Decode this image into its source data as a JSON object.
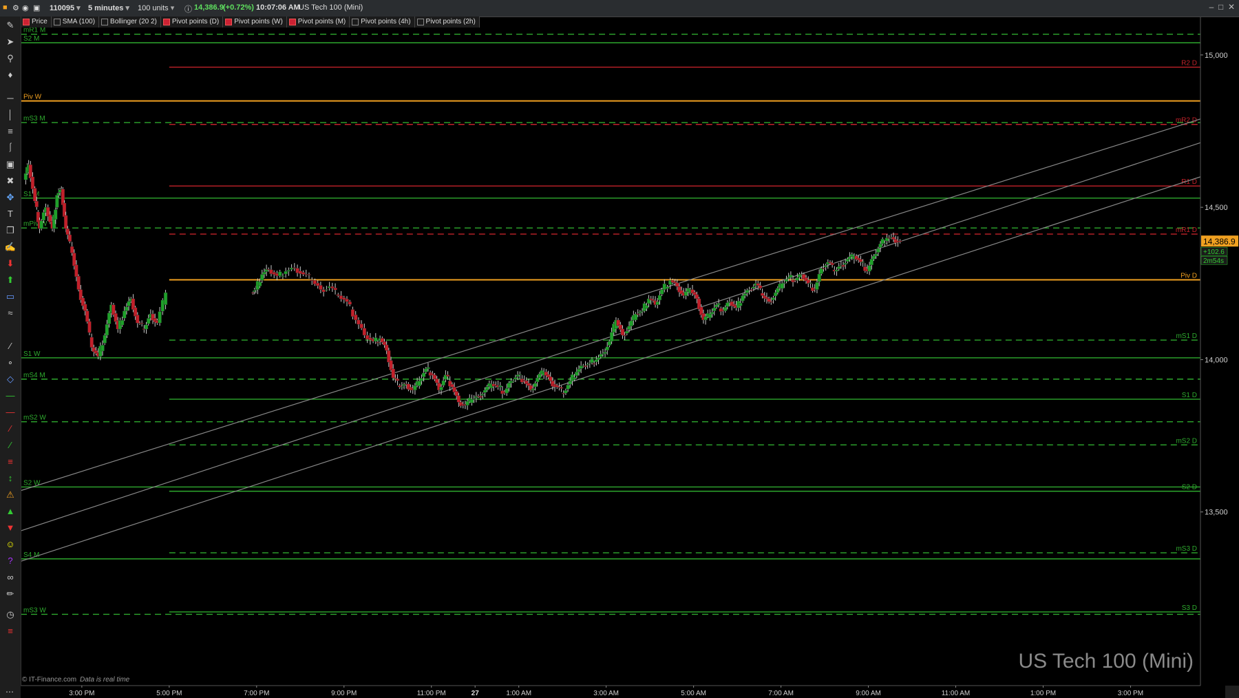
{
  "toolbar": {
    "account": "110095",
    "interval": "5 minutes",
    "units": "100 units",
    "price": "14,386.9",
    "change": "(+0.72%)",
    "time": "10:07:06 AM",
    "instrument": "US Tech 100 (Mini)"
  },
  "indicators": [
    {
      "label": "Price",
      "active": true
    },
    {
      "label": "SMA (100)",
      "active": false
    },
    {
      "label": "Bollinger (20 2)",
      "active": false
    },
    {
      "label": "Pivot points (D)",
      "active": true
    },
    {
      "label": "Pivot points (W)",
      "active": true
    },
    {
      "label": "Pivot points (M)",
      "active": true
    },
    {
      "label": "Pivot points (4h)",
      "active": false
    },
    {
      "label": "Pivot points (2h)",
      "active": false
    }
  ],
  "watermark": "US Tech 100 (Mini)",
  "copyright": "© IT-Finance.com",
  "realtime_note": "Data is real time",
  "price_box": {
    "price": "14,386.9",
    "change": "+102.6",
    "countdown": "2m54s"
  },
  "colors": {
    "up": "#1fa02a",
    "down": "#c2202a",
    "pivot": "#f0a020",
    "support": "#2eaa2e",
    "resistance": "#c2222a",
    "channel": "#888888",
    "background": "#000000"
  },
  "chart_data": {
    "type": "candlestick",
    "instrument": "US Tech 100 (Mini)",
    "interval": "5 minutes",
    "y_ticks": [
      "15,000",
      "14,500",
      "14,000",
      "13,500"
    ],
    "y_tick_values": [
      15000,
      14500,
      14000,
      13500
    ],
    "ylim": [
      12930,
      15090
    ],
    "x_ticks": [
      "3:00 PM",
      "5:00 PM",
      "7:00 PM",
      "9:00 PM",
      "11:00 PM",
      "27",
      "1:00 AM",
      "3:00 AM",
      "5:00 AM",
      "7:00 AM",
      "9:00 AM",
      "11:00 AM",
      "1:00 PM",
      "3:00 PM"
    ],
    "x_tick_hours": [
      15,
      17,
      19,
      21,
      23,
      24,
      25,
      27,
      29,
      31,
      33,
      35,
      37,
      39
    ],
    "xlim_hours": [
      13.6,
      40.6
    ],
    "last_price": 14386.9,
    "levels": [
      {
        "label": "mR1 M",
        "value": 15068,
        "color": "#2eaa2e",
        "style": "dashed",
        "side": "left",
        "from": "start"
      },
      {
        "label": "S2 M",
        "value": 15040,
        "color": "#2eaa2e",
        "style": "solid",
        "side": "left",
        "from": "start"
      },
      {
        "label": "R2 D",
        "value": 14960,
        "color": "#c2222a",
        "style": "solid",
        "side": "right",
        "from": "day"
      },
      {
        "label": "Piv W",
        "value": 14849,
        "color": "#f0a020",
        "style": "solid",
        "side": "left",
        "from": "start"
      },
      {
        "label": "mS3 M",
        "value": 14778,
        "color": "#2eaa2e",
        "style": "dashed",
        "side": "left",
        "from": "start"
      },
      {
        "label": "mR2 D",
        "value": 14772,
        "color": "#c2222a",
        "style": "dashed",
        "side": "right",
        "from": "day"
      },
      {
        "label": "R1 D",
        "value": 14570,
        "color": "#c2222a",
        "style": "solid",
        "side": "right",
        "from": "day"
      },
      {
        "label": "S1 M",
        "value": 14530,
        "color": "#2eaa2e",
        "style": "solid",
        "side": "left",
        "from": "start"
      },
      {
        "label": "mPiv W",
        "value": 14432,
        "color": "#2eaa2e",
        "style": "dashed",
        "side": "left",
        "from": "start"
      },
      {
        "label": "mR1 D",
        "value": 14412,
        "color": "#c2222a",
        "style": "dashed",
        "side": "right",
        "from": "day"
      },
      {
        "label": "Piv D",
        "value": 14262,
        "color": "#f0a020",
        "style": "solid",
        "side": "right",
        "from": "day"
      },
      {
        "label": "mS1 D",
        "value": 14064,
        "color": "#2eaa2e",
        "style": "dashed",
        "side": "right",
        "from": "day"
      },
      {
        "label": "S1 W",
        "value": 14006,
        "color": "#2eaa2e",
        "style": "solid",
        "side": "left",
        "from": "start"
      },
      {
        "label": "mS4 M",
        "value": 13936,
        "color": "#2eaa2e",
        "style": "dashed",
        "side": "left",
        "from": "start"
      },
      {
        "label": "S1 D",
        "value": 13870,
        "color": "#2eaa2e",
        "style": "solid",
        "side": "right",
        "from": "day"
      },
      {
        "label": "mS2 W",
        "value": 13796,
        "color": "#2eaa2e",
        "style": "dashed",
        "side": "left",
        "from": "start"
      },
      {
        "label": "mS2 D",
        "value": 13720,
        "color": "#2eaa2e",
        "style": "dashed",
        "side": "right",
        "from": "day"
      },
      {
        "label": "S2 W",
        "value": 13582,
        "color": "#2eaa2e",
        "style": "solid",
        "side": "left",
        "from": "start"
      },
      {
        "label": "S2 D",
        "value": 13568,
        "color": "#2eaa2e",
        "style": "solid",
        "side": "right",
        "from": "day"
      },
      {
        "label": "mS3 D",
        "value": 13366,
        "color": "#2eaa2e",
        "style": "dashed",
        "side": "right",
        "from": "day"
      },
      {
        "label": "S4 M",
        "value": 13346,
        "color": "#2eaa2e",
        "style": "solid",
        "side": "left",
        "from": "start"
      },
      {
        "label": "mS3 W",
        "value": 13164,
        "color": "#2eaa2e",
        "style": "dashed",
        "side": "left",
        "from": "start"
      },
      {
        "label": "S3 D",
        "value": 13172,
        "color": "#2eaa2e",
        "style": "solid",
        "side": "right",
        "from": "day"
      }
    ],
    "day_start_hour": 17.0,
    "channel_lines": [
      {
        "x1": 13.6,
        "y1": 13570,
        "x2": 40.6,
        "y2": 14790
      },
      {
        "x1": 13.6,
        "y1": 13438,
        "x2": 40.6,
        "y2": 14712
      },
      {
        "x1": 13.6,
        "y1": 13338,
        "x2": 40.6,
        "y2": 14600
      }
    ],
    "price_path": [
      [
        13.7,
        14590
      ],
      [
        13.8,
        14640
      ],
      [
        13.95,
        14520
      ],
      [
        14.05,
        14430
      ],
      [
        14.2,
        14500
      ],
      [
        14.35,
        14430
      ],
      [
        14.45,
        14540
      ],
      [
        14.55,
        14560
      ],
      [
        14.65,
        14430
      ],
      [
        14.8,
        14350
      ],
      [
        14.95,
        14230
      ],
      [
        15.1,
        14160
      ],
      [
        15.25,
        14040
      ],
      [
        15.4,
        14010
      ],
      [
        15.55,
        14080
      ],
      [
        15.7,
        14180
      ],
      [
        15.85,
        14100
      ],
      [
        16.0,
        14160
      ],
      [
        16.15,
        14200
      ],
      [
        16.3,
        14120
      ],
      [
        16.45,
        14100
      ],
      [
        16.6,
        14150
      ],
      [
        16.75,
        14120
      ],
      [
        16.95,
        14220
      ],
      [
        19.0,
        14230
      ],
      [
        19.15,
        14280
      ],
      [
        19.3,
        14295
      ],
      [
        19.5,
        14275
      ],
      [
        19.7,
        14290
      ],
      [
        19.9,
        14300
      ],
      [
        20.1,
        14280
      ],
      [
        20.3,
        14260
      ],
      [
        20.5,
        14230
      ],
      [
        20.7,
        14240
      ],
      [
        20.9,
        14210
      ],
      [
        21.1,
        14190
      ],
      [
        21.3,
        14130
      ],
      [
        21.5,
        14080
      ],
      [
        21.7,
        14060
      ],
      [
        21.85,
        14070
      ],
      [
        22.0,
        14030
      ],
      [
        22.15,
        13940
      ],
      [
        22.3,
        13910
      ],
      [
        22.45,
        13920
      ],
      [
        22.6,
        13900
      ],
      [
        22.75,
        13930
      ],
      [
        22.9,
        13970
      ],
      [
        23.05,
        13950
      ],
      [
        23.2,
        13900
      ],
      [
        23.35,
        13950
      ],
      [
        23.5,
        13910
      ],
      [
        23.65,
        13860
      ],
      [
        23.8,
        13850
      ],
      [
        23.95,
        13870
      ],
      [
        24.1,
        13880
      ],
      [
        24.25,
        13900
      ],
      [
        24.4,
        13920
      ],
      [
        24.55,
        13910
      ],
      [
        24.7,
        13890
      ],
      [
        24.85,
        13930
      ],
      [
        25.0,
        13950
      ],
      [
        25.15,
        13930
      ],
      [
        25.3,
        13900
      ],
      [
        25.45,
        13940
      ],
      [
        25.6,
        13960
      ],
      [
        25.75,
        13930
      ],
      [
        25.9,
        13910
      ],
      [
        26.05,
        13890
      ],
      [
        26.2,
        13930
      ],
      [
        26.35,
        13960
      ],
      [
        26.5,
        13980
      ],
      [
        26.65,
        13990
      ],
      [
        26.8,
        14000
      ],
      [
        26.95,
        14020
      ],
      [
        27.1,
        14060
      ],
      [
        27.25,
        14130
      ],
      [
        27.4,
        14080
      ],
      [
        27.55,
        14110
      ],
      [
        27.7,
        14150
      ],
      [
        27.85,
        14160
      ],
      [
        28.0,
        14200
      ],
      [
        28.15,
        14180
      ],
      [
        28.3,
        14230
      ],
      [
        28.5,
        14260
      ],
      [
        28.65,
        14240
      ],
      [
        28.8,
        14210
      ],
      [
        28.95,
        14230
      ],
      [
        29.1,
        14200
      ],
      [
        29.25,
        14130
      ],
      [
        29.4,
        14150
      ],
      [
        29.55,
        14180
      ],
      [
        29.7,
        14160
      ],
      [
        29.85,
        14190
      ],
      [
        30.0,
        14170
      ],
      [
        30.15,
        14210
      ],
      [
        30.3,
        14230
      ],
      [
        30.45,
        14250
      ],
      [
        30.6,
        14210
      ],
      [
        30.75,
        14190
      ],
      [
        30.9,
        14220
      ],
      [
        31.05,
        14250
      ],
      [
        31.2,
        14270
      ],
      [
        31.35,
        14260
      ],
      [
        31.5,
        14280
      ],
      [
        31.65,
        14250
      ],
      [
        31.8,
        14230
      ],
      [
        31.95,
        14300
      ],
      [
        32.1,
        14320
      ],
      [
        32.25,
        14290
      ],
      [
        32.4,
        14310
      ],
      [
        32.55,
        14330
      ],
      [
        32.7,
        14340
      ],
      [
        32.85,
        14320
      ],
      [
        33.0,
        14290
      ],
      [
        33.15,
        14340
      ],
      [
        33.3,
        14380
      ],
      [
        33.45,
        14400
      ],
      [
        33.6,
        14395
      ],
      [
        33.75,
        14387
      ]
    ]
  }
}
